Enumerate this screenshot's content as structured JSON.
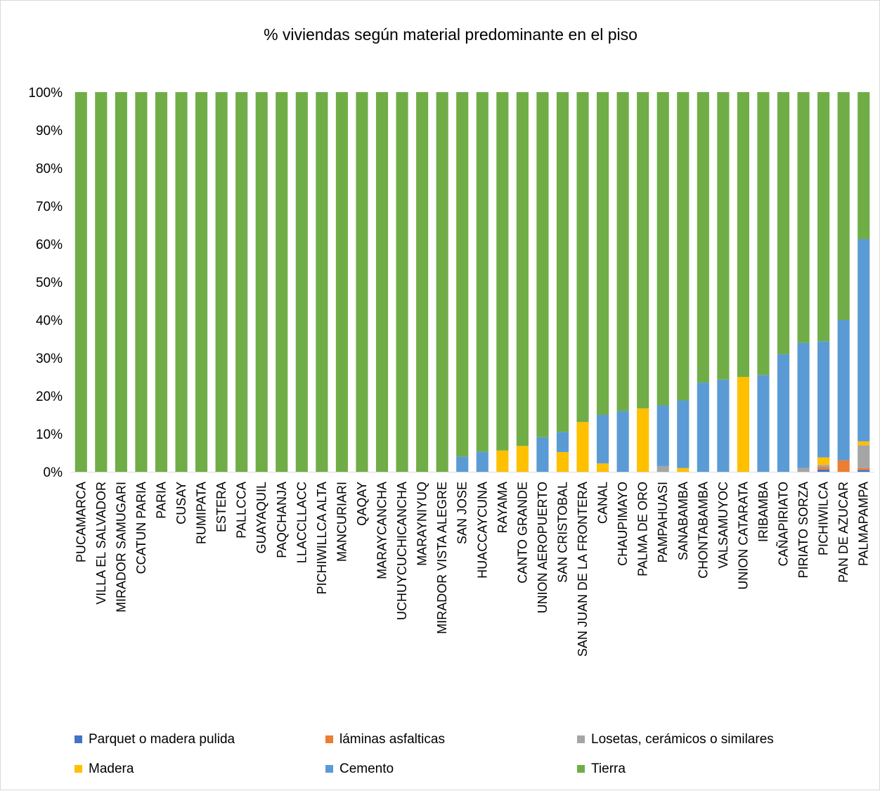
{
  "chart_data": {
    "type": "bar",
    "stacked": true,
    "percent": true,
    "title": "% viviendas según material predominante en el piso",
    "ylim": [
      0,
      100
    ],
    "yticks": [
      "0%",
      "10%",
      "20%",
      "30%",
      "40%",
      "50%",
      "60%",
      "70%",
      "80%",
      "90%",
      "100%"
    ],
    "grid": false,
    "legend_position": "bottom",
    "categories": [
      "PUCAMARCA",
      "VILLA EL SALVADOR",
      "MIRADOR SAMUGARI",
      "CCATUN PARIA",
      "PARIA",
      "CUSAY",
      "RUMIPATA",
      "ESTERA",
      "PALLCCA",
      "GUAYAQUIL",
      "PAQCHANJA",
      "LLACCLLACC",
      "PICHIWILLCA ALTA",
      "MANCURIARI",
      "QAQAY",
      "MARAYCANCHA",
      "UCHUYCUCHICANCHA",
      "MARAYNIYUQ",
      "MIRADOR VISTA ALEGRE",
      "SAN JOSE",
      "HUACCAYCUNA",
      "RAYAMA",
      "CANTO GRANDE",
      "UNION AEROPUERTO",
      "SAN CRISTOBAL",
      "SAN JUAN DE LA FRONTERA",
      "CANAL",
      "CHAUPIMAYO",
      "PALMA DE ORO",
      "PAMPAHUASI",
      "SANABAMBA",
      "CHONTABAMBA",
      "VALSAMUYOC",
      "UNION CATARATA",
      "IRIBAMBA",
      "CAÑAPIRIATO",
      "PIRIATO SORZA",
      "PICHIWILCA",
      "PAN DE AZUCAR",
      "PALMAPAMPA"
    ],
    "series": [
      {
        "name": "Parquet o madera pulida",
        "color": "#4472c4",
        "values": [
          0,
          0,
          0,
          0,
          0,
          0,
          0,
          0,
          0,
          0,
          0,
          0,
          0,
          0,
          0,
          0,
          0,
          0,
          0,
          0,
          0,
          0,
          0,
          0,
          0,
          0,
          0,
          0,
          0,
          0,
          0,
          0,
          0,
          0,
          0,
          0,
          0,
          0.6,
          0,
          0.5
        ]
      },
      {
        "name": "láminas asfalticas",
        "color": "#ed7d31",
        "values": [
          0,
          0,
          0,
          0,
          0,
          0,
          0,
          0,
          0,
          0,
          0,
          0,
          0,
          0,
          0,
          0,
          0,
          0,
          0,
          0,
          0,
          0,
          0,
          0,
          0,
          0,
          0,
          0,
          0,
          0,
          0,
          0,
          0,
          0,
          0,
          0,
          0,
          0.6,
          3,
          0.5
        ]
      },
      {
        "name": "Losetas, cerámicos o similares",
        "color": "#a5a5a5",
        "values": [
          0,
          0,
          0,
          0,
          0,
          0,
          0,
          0,
          0,
          0,
          0,
          0,
          0,
          0,
          0,
          0,
          0,
          0,
          0,
          0,
          0,
          0,
          0,
          0,
          0,
          0,
          0,
          0,
          0,
          1.5,
          0,
          0,
          0,
          0,
          0,
          0,
          1,
          0.6,
          0,
          6
        ]
      },
      {
        "name": "Madera",
        "color": "#ffc000",
        "values": [
          0,
          0,
          0,
          0,
          0,
          0,
          0,
          0,
          0,
          0,
          0,
          0,
          0,
          0,
          0,
          0,
          0,
          0,
          0,
          0,
          0,
          5.6,
          6.8,
          0,
          5.2,
          13.1,
          2.2,
          0,
          16.7,
          0,
          1,
          0,
          0,
          25,
          0,
          0,
          0,
          2,
          0,
          1
        ]
      },
      {
        "name": "Cemento",
        "color": "#5b9bd5",
        "values": [
          0,
          0,
          0,
          0,
          0,
          0,
          0,
          0,
          0,
          0,
          0,
          0,
          0,
          0,
          0,
          0,
          0,
          0,
          0,
          4,
          5.3,
          0,
          0,
          9.1,
          5.3,
          0,
          12.8,
          16,
          0,
          16,
          17.8,
          23.5,
          24.3,
          0,
          25.5,
          31,
          33,
          30.6,
          37,
          53.3
        ]
      },
      {
        "name": "Tierra",
        "color": "#70ad47",
        "values": [
          100,
          100,
          100,
          100,
          100,
          100,
          100,
          100,
          100,
          100,
          100,
          100,
          100,
          100,
          100,
          100,
          100,
          100,
          100,
          96,
          94.7,
          94.4,
          93.2,
          90.9,
          89.5,
          86.9,
          85,
          84,
          83.3,
          82.5,
          81.2,
          76.5,
          75.7,
          75,
          74.5,
          69,
          66,
          65.6,
          60,
          38.7
        ]
      }
    ]
  }
}
